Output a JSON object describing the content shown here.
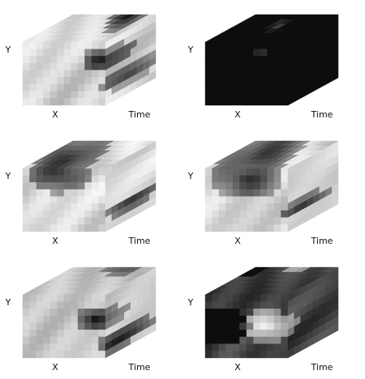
{
  "panels": [
    {
      "y_label": "Y",
      "x_label": "X",
      "time_label": "Time"
    },
    {
      "y_label": "Y",
      "x_label": "X",
      "time_label": "Time"
    },
    {
      "y_label": "Y",
      "x_label": "X",
      "time_label": "Time"
    },
    {
      "y_label": "Y",
      "x_label": "X",
      "time_label": "Time"
    },
    {
      "y_label": "Y",
      "x_label": "X",
      "time_label": "Time"
    },
    {
      "y_label": "Y",
      "x_label": "X",
      "time_label": "Time"
    }
  ]
}
